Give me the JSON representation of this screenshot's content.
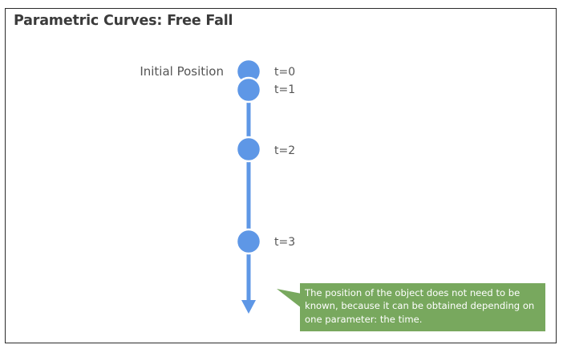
{
  "title": "Parametric Curves: Free Fall",
  "labels": {
    "initial_position": "Initial Position",
    "t0": "t=0",
    "t1": "t=1",
    "t2": "t=2",
    "t3": "t=3"
  },
  "callout": "The position of the object does not need to be known, because it can be obtained depending on one parameter: the time.",
  "colors": {
    "ball": "#5e97e6",
    "arrow": "#5e97e6",
    "callout_fill": "#78a85e",
    "frame": "#2b2b2b",
    "title": "#3b3b3b",
    "label": "#555555"
  }
}
